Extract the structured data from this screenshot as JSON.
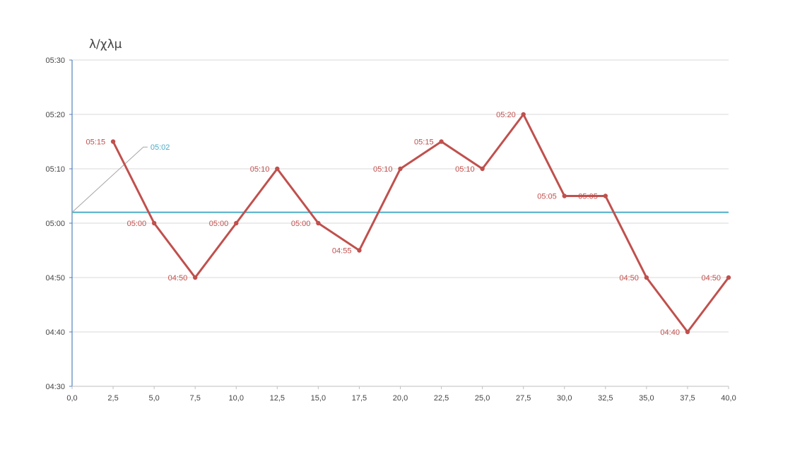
{
  "chart_data": {
    "type": "line",
    "unit_label": "λ/χλμ",
    "x": [
      2.5,
      5.0,
      7.5,
      10.0,
      12.5,
      15.0,
      17.5,
      20.0,
      22.5,
      25.0,
      27.5,
      30.0,
      32.5,
      35.0,
      37.5,
      40.0
    ],
    "values": [
      "05:15",
      "05:00",
      "04:50",
      "05:00",
      "05:10",
      "05:00",
      "04:55",
      "05:10",
      "05:15",
      "05:10",
      "05:20",
      "05:05",
      "05:05",
      "04:50",
      "04:40",
      "04:50"
    ],
    "average": {
      "value": "05:02",
      "label": "05:02"
    },
    "xlim": [
      0,
      40
    ],
    "ylim": [
      "04:30",
      "05:30"
    ],
    "x_ticks": [
      "0,0",
      "2,5",
      "5,0",
      "7,5",
      "10,0",
      "12,5",
      "15,0",
      "17,5",
      "20,0",
      "22,5",
      "25,0",
      "27,5",
      "30,0",
      "32,5",
      "35,0",
      "37,5",
      "40,0"
    ],
    "y_ticks": [
      "04:30",
      "04:40",
      "04:50",
      "05:00",
      "05:10",
      "05:20",
      "05:30"
    ],
    "grid": true,
    "colors": {
      "series": "#c0504d",
      "average": "#4bacc6",
      "grid": "#d9d9d9",
      "axis": "#4f81bd",
      "leader": "#a6a6a6"
    }
  }
}
